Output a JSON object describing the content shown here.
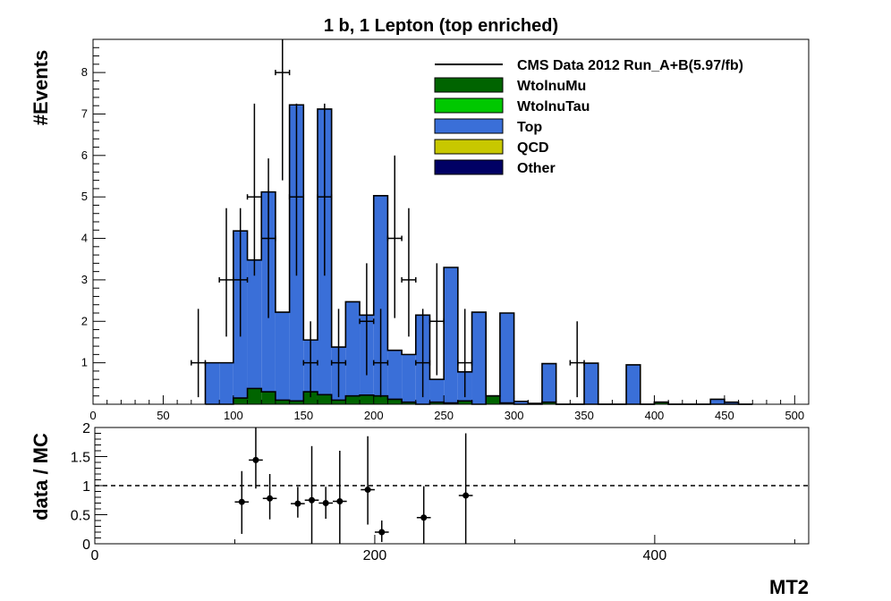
{
  "chart_data": [
    {
      "type": "bar",
      "stacked": true,
      "histogram": true,
      "title": "1 b, 1 Lepton (top enriched)",
      "ylabel": "#Events",
      "xlabel": "",
      "xlim": [
        0,
        510
      ],
      "ylim": [
        0,
        8.8
      ],
      "x_ticks": [
        0,
        50,
        100,
        150,
        200,
        250,
        300,
        350,
        400,
        450,
        500
      ],
      "y_ticks": [
        1,
        2,
        3,
        4,
        5,
        6,
        7,
        8
      ],
      "bin_width": 10,
      "bin_edges_start": 80,
      "legend_position": "top-right",
      "legend": [
        {
          "label": "CMS Data 2012 Run_A+B(5.97/fb)",
          "kind": "line",
          "color": "#000000"
        },
        {
          "label": "WtolnuMu",
          "kind": "box",
          "color": "#006400"
        },
        {
          "label": "WtolnuTau",
          "kind": "box",
          "color": "#00c800"
        },
        {
          "label": "Top",
          "kind": "box",
          "color": "#3a6fd8"
        },
        {
          "label": "QCD",
          "kind": "box",
          "color": "#c8c800"
        },
        {
          "label": "Other",
          "kind": "box",
          "color": "#000064"
        }
      ],
      "series": [
        {
          "name": "WtolnuMu",
          "color": "#006400",
          "values": [
            0.0,
            0.0,
            0.15,
            0.38,
            0.3,
            0.1,
            0.08,
            0.3,
            0.23,
            0.1,
            0.2,
            0.22,
            0.2,
            0.12,
            0.05,
            0.0,
            0.05,
            0.03,
            0.08,
            0.0,
            0.2,
            0.03,
            0.0,
            0.0,
            0.05,
            0.0,
            0.0,
            0.0,
            0.0,
            0.0,
            0.0,
            0.0,
            0.05,
            0.0,
            0.0,
            0.0,
            0.0,
            0.0,
            0.0
          ]
        },
        {
          "name": "WtolnuTau",
          "color": "#00c800",
          "values": [
            0.0,
            0.0,
            0.0,
            0.0,
            0.0,
            0.0,
            0.0,
            0.0,
            0.0,
            0.0,
            0.0,
            0.0,
            0.0,
            0.0,
            0.0,
            0.0,
            0.0,
            0.0,
            0.0,
            0.0,
            0.0,
            0.0,
            0.0,
            0.0,
            0.0,
            0.0,
            0.0,
            0.0,
            0.0,
            0.0,
            0.0,
            0.0,
            0.0,
            0.0,
            0.0,
            0.0,
            0.0,
            0.0,
            0.0
          ]
        },
        {
          "name": "Top",
          "color": "#3a6fd8",
          "values": [
            1.0,
            1.0,
            4.03,
            3.1,
            4.82,
            2.12,
            7.14,
            1.25,
            6.89,
            1.28,
            2.27,
            1.93,
            4.83,
            1.18,
            1.15,
            2.15,
            0.55,
            3.27,
            0.7,
            2.22,
            0.0,
            2.17,
            0.07,
            0.02,
            0.93,
            0.0,
            0.0,
            0.99,
            0.0,
            0.0,
            0.95,
            0.0,
            0.0,
            0.0,
            0.0,
            0.0,
            0.12,
            0.05,
            0.0
          ]
        },
        {
          "name": "QCD",
          "color": "#c8c800",
          "values": [
            0.0,
            0.0,
            0.0,
            0.0,
            0.0,
            0.0,
            0.0,
            0.0,
            0.0,
            0.0,
            0.0,
            0.0,
            0.0,
            0.0,
            0.0,
            0.0,
            0.0,
            0.0,
            0.0,
            0.0,
            0.0,
            0.0,
            0.0,
            0.0,
            0.0,
            0.0,
            0.0,
            0.0,
            0.0,
            0.0,
            0.0,
            0.0,
            0.0,
            0.0,
            0.0,
            0.0,
            0.0,
            0.0,
            0.0
          ]
        },
        {
          "name": "Other",
          "color": "#000064",
          "values": [
            0.0,
            0.0,
            0.0,
            0.0,
            0.0,
            0.0,
            0.0,
            0.0,
            0.0,
            0.0,
            0.0,
            0.0,
            0.0,
            0.0,
            0.0,
            0.0,
            0.0,
            0.0,
            0.0,
            0.0,
            0.0,
            0.0,
            0.0,
            0.0,
            0.0,
            0.0,
            0.0,
            0.0,
            0.0,
            0.0,
            0.0,
            0.0,
            0.0,
            0.0,
            0.0,
            0.0,
            0.0,
            0.0,
            0.0
          ]
        }
      ],
      "data_points": [
        {
          "x": 75,
          "xerr": 5,
          "y": 1,
          "ylo": 0.17,
          "yhi": 2.3
        },
        {
          "x": 95,
          "xerr": 5,
          "y": 3,
          "ylo": 1.63,
          "yhi": 4.73
        },
        {
          "x": 105,
          "xerr": 5,
          "y": 3,
          "ylo": 1.63,
          "yhi": 4.73
        },
        {
          "x": 115,
          "xerr": 5,
          "y": 5,
          "ylo": 3.1,
          "yhi": 7.25
        },
        {
          "x": 125,
          "xerr": 5,
          "y": 4,
          "ylo": 2.08,
          "yhi": 5.93
        },
        {
          "x": 135,
          "xerr": 5,
          "y": 8,
          "ylo": 5.4,
          "yhi": 8.8
        },
        {
          "x": 145,
          "xerr": 5,
          "y": 5,
          "ylo": 3.1,
          "yhi": 7.25
        },
        {
          "x": 155,
          "xerr": 5,
          "y": 1,
          "ylo": 0.17,
          "yhi": 2.0
        },
        {
          "x": 165,
          "xerr": 5,
          "y": 5,
          "ylo": 3.1,
          "yhi": 7.25
        },
        {
          "x": 175,
          "xerr": 5,
          "y": 1,
          "ylo": 0.17,
          "yhi": 2.3
        },
        {
          "x": 195,
          "xerr": 5,
          "y": 2,
          "ylo": 0.7,
          "yhi": 3.4
        },
        {
          "x": 205,
          "xerr": 5,
          "y": 1,
          "ylo": 0.17,
          "yhi": 2.3
        },
        {
          "x": 215,
          "xerr": 5,
          "y": 4,
          "ylo": 2.08,
          "yhi": 6.0
        },
        {
          "x": 225,
          "xerr": 5,
          "y": 3,
          "ylo": 1.63,
          "yhi": 4.73
        },
        {
          "x": 235,
          "xerr": 5,
          "y": 1,
          "ylo": 0.17,
          "yhi": 2.3
        },
        {
          "x": 245,
          "xerr": 5,
          "y": 2,
          "ylo": 0.7,
          "yhi": 3.4
        },
        {
          "x": 265,
          "xerr": 5,
          "y": 1,
          "ylo": 0.17,
          "yhi": 2.3
        },
        {
          "x": 345,
          "xerr": 5,
          "y": 1,
          "ylo": 0.17,
          "yhi": 2.0
        }
      ]
    },
    {
      "type": "scatter",
      "title": "",
      "ylabel": "data / MC",
      "xlabel": "MT2",
      "xlim": [
        0,
        510
      ],
      "ylim": [
        0,
        2
      ],
      "x_ticks": [
        0,
        200,
        400
      ],
      "y_ticks": [
        0,
        0.5,
        1,
        1.5,
        2
      ],
      "y_tick_labels": [
        "0",
        "0.5",
        "1",
        "1.5",
        "2"
      ],
      "reference_line": 1,
      "points": [
        {
          "x": 105,
          "xerr": 5,
          "y": 0.72,
          "ylo": 0.17,
          "yhi": 1.25
        },
        {
          "x": 115,
          "xerr": 5,
          "y": 1.44,
          "ylo": 0.95,
          "yhi": 2.0
        },
        {
          "x": 125,
          "xerr": 5,
          "y": 0.78,
          "ylo": 0.42,
          "yhi": 1.2
        },
        {
          "x": 145,
          "xerr": 5,
          "y": 0.69,
          "ylo": 0.45,
          "yhi": 0.98
        },
        {
          "x": 155,
          "xerr": 5,
          "y": 0.75,
          "ylo": 0.0,
          "yhi": 1.68
        },
        {
          "x": 165,
          "xerr": 5,
          "y": 0.7,
          "ylo": 0.43,
          "yhi": 0.98
        },
        {
          "x": 175,
          "xerr": 5,
          "y": 0.73,
          "ylo": 0.0,
          "yhi": 1.6
        },
        {
          "x": 195,
          "xerr": 5,
          "y": 0.93,
          "ylo": 0.33,
          "yhi": 1.85
        },
        {
          "x": 205,
          "xerr": 5,
          "y": 0.2,
          "ylo": 0.03,
          "yhi": 0.4
        },
        {
          "x": 235,
          "xerr": 5,
          "y": 0.45,
          "ylo": 0.0,
          "yhi": 0.99
        },
        {
          "x": 265,
          "xerr": 5,
          "y": 0.83,
          "ylo": 0.0,
          "yhi": 1.9
        }
      ]
    }
  ]
}
